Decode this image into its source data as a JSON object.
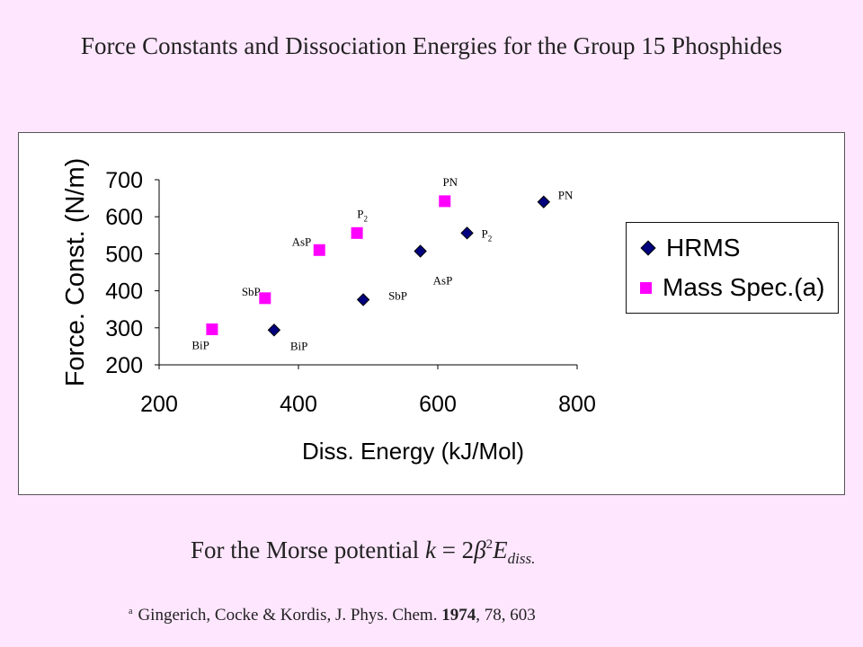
{
  "slide": {
    "title": "Force Constants and Dissociation Energies for the Group 15 Phosphides",
    "formula_prefix": "For the Morse potential ",
    "formula_k": "k",
    "formula_equals": " = 2",
    "formula_beta": "β",
    "formula_exp": "2",
    "formula_E": "E",
    "formula_sub": "diss.",
    "reference_marker": "a",
    "reference_authors": "Gingerich, Cocke & Kordis, J. Phys. Chem. ",
    "reference_year": "1974",
    "reference_rest": ", 78, 603"
  },
  "colors": {
    "hrms": "#00007F",
    "mass_spec": "#FF00FF",
    "background": "#FFE6FF"
  },
  "chart_data": {
    "type": "scatter",
    "xlabel": "Diss. Energy (kJ/Mol)",
    "ylabel": "Force. Const. (N/m)",
    "xlim": [
      200,
      800
    ],
    "ylim": [
      200,
      700
    ],
    "x_ticks": [
      200,
      400,
      600,
      800
    ],
    "y_ticks": [
      200,
      300,
      400,
      500,
      600,
      700
    ],
    "grid": false,
    "legend_position": "right",
    "series": [
      {
        "name": "HRMS",
        "marker": "diamond",
        "points": [
          {
            "x": 365,
            "y": 294,
            "label": "BiP"
          },
          {
            "x": 493,
            "y": 376,
            "label": "SbP"
          },
          {
            "x": 575,
            "y": 507,
            "label": "AsP"
          },
          {
            "x": 642,
            "y": 556,
            "label": "P2"
          },
          {
            "x": 752,
            "y": 640,
            "label": "PN"
          }
        ]
      },
      {
        "name": "Mass Spec.(a)",
        "marker": "square",
        "points": [
          {
            "x": 276,
            "y": 296,
            "label": "BiP"
          },
          {
            "x": 352,
            "y": 380,
            "label": "SbP"
          },
          {
            "x": 430,
            "y": 510,
            "label": "AsP"
          },
          {
            "x": 484,
            "y": 556,
            "label": "P2"
          },
          {
            "x": 610,
            "y": 642,
            "label": "PN"
          }
        ]
      }
    ]
  }
}
